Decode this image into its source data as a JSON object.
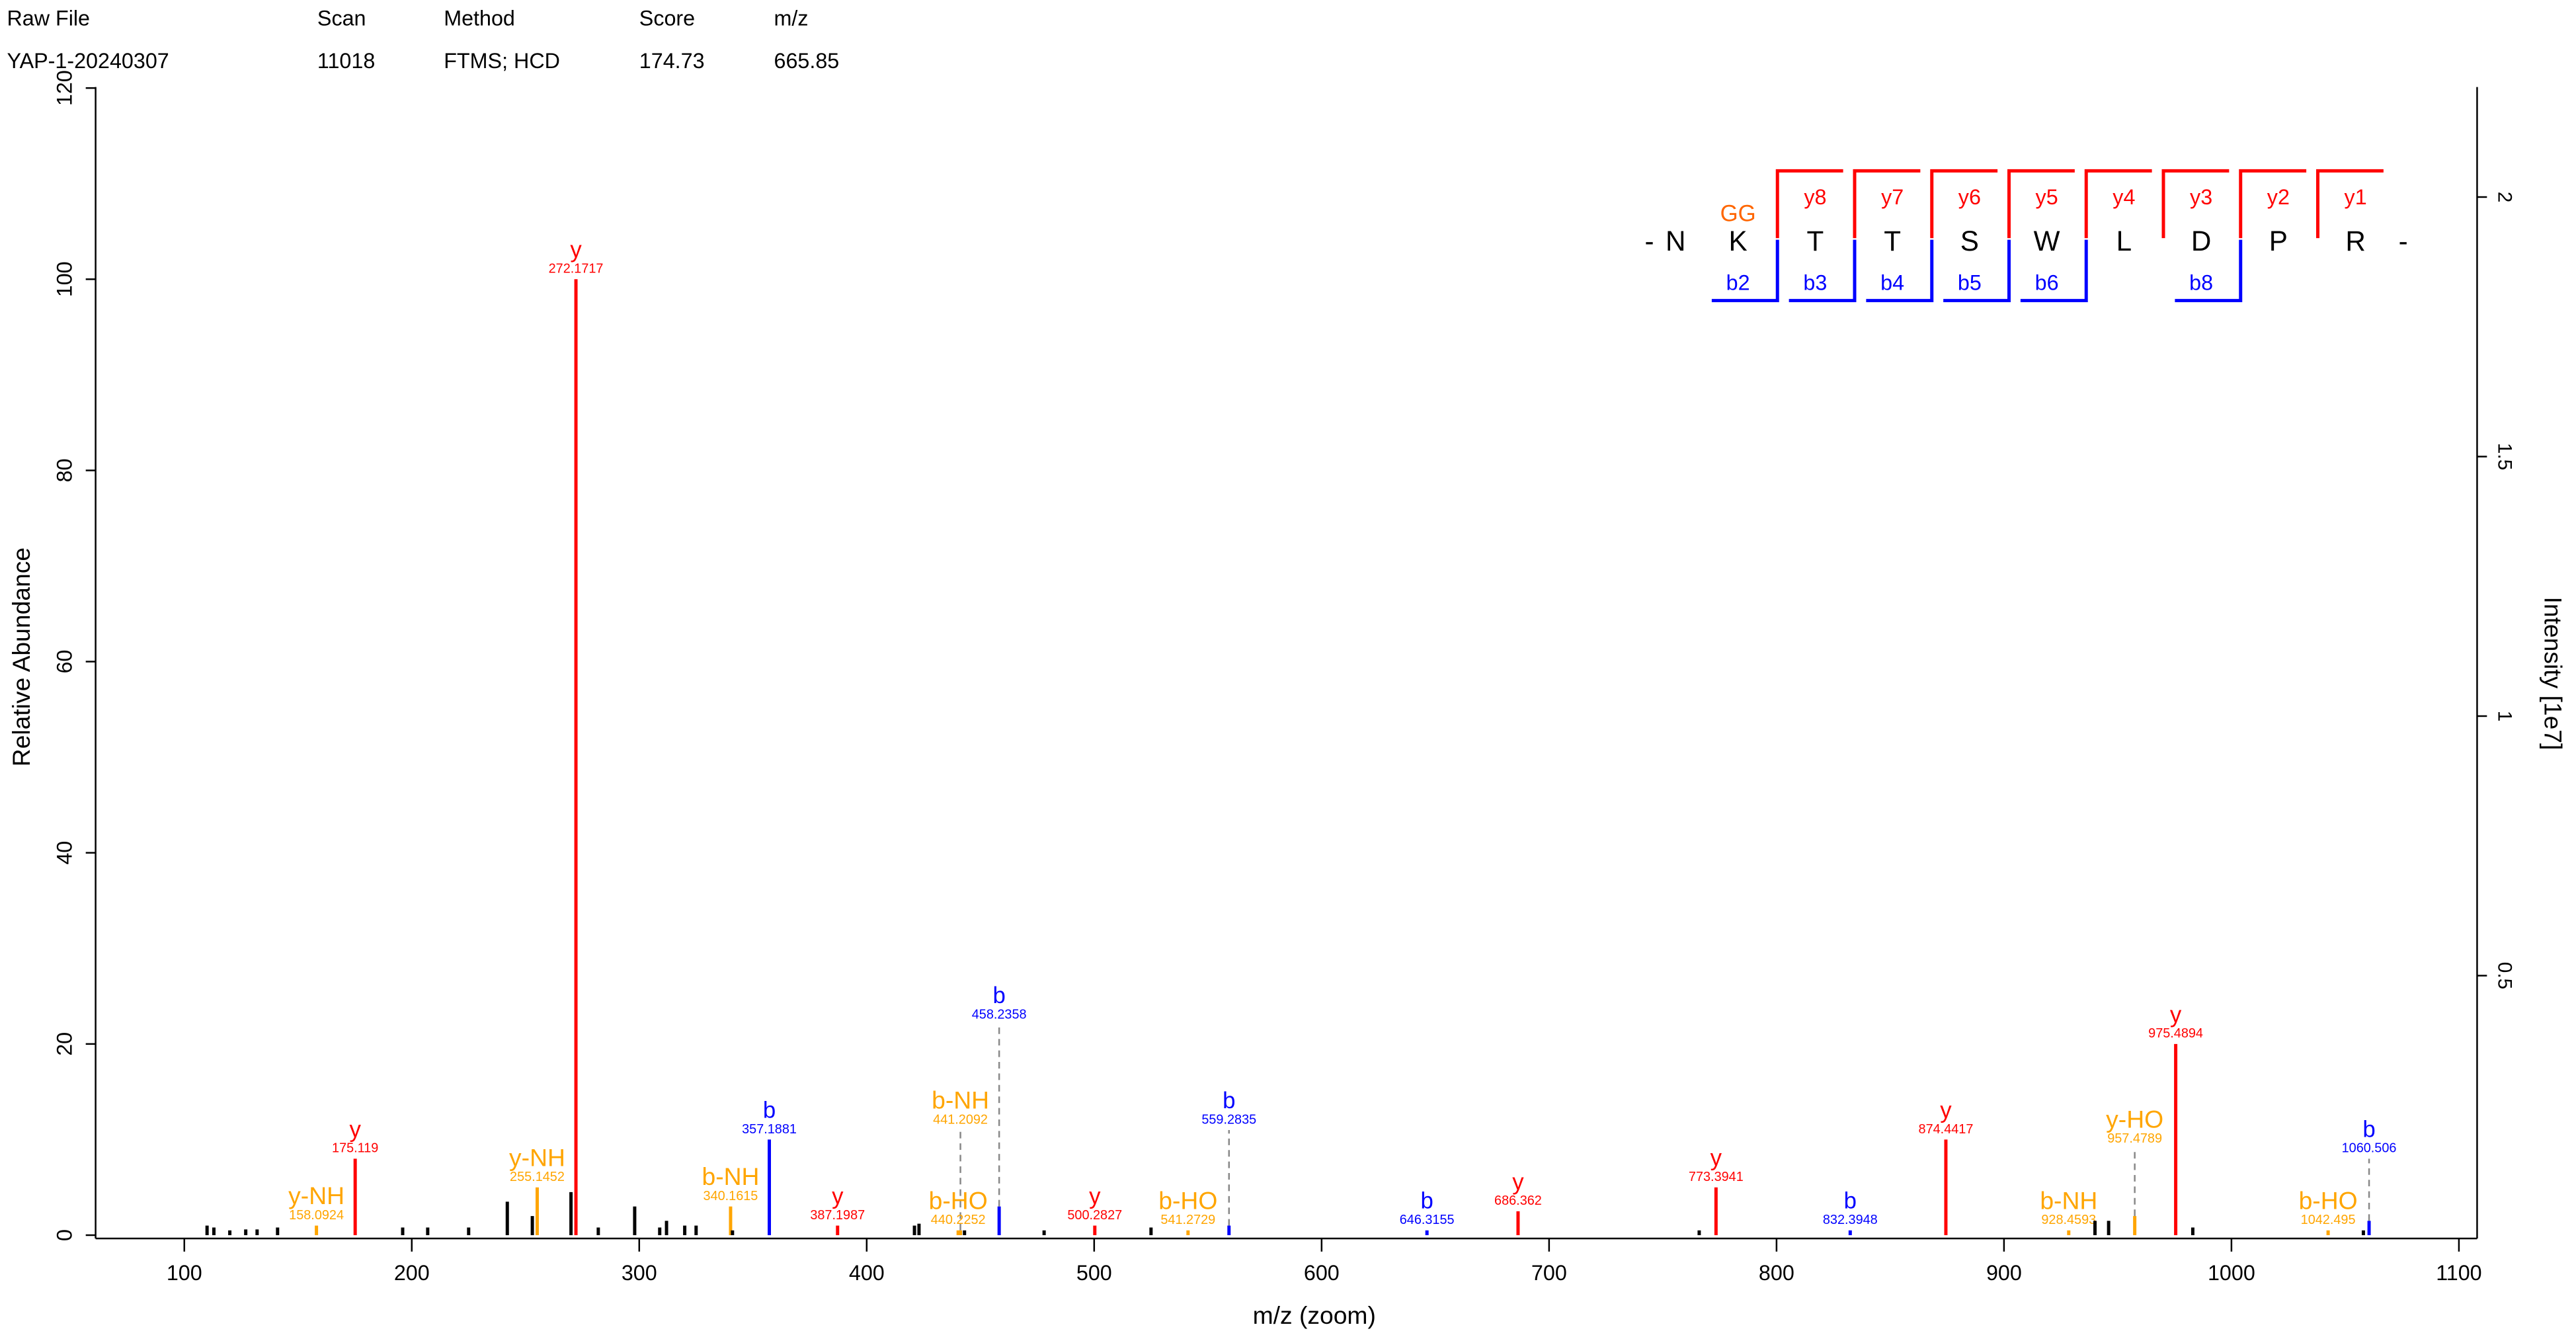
{
  "header": {
    "columns": [
      "Raw File",
      "Scan",
      "Method",
      "Score",
      "m/z"
    ],
    "values": [
      "YAP-1-20240307",
      "11018",
      "FTMS; HCD",
      "174.73",
      "665.85"
    ]
  },
  "chart_data": {
    "type": "spectrum",
    "xlabel": "m/z (zoom)",
    "ylabel": "Relative Abundance",
    "y2label": "Intensity [1e7]",
    "xlim": [
      61,
      1108
    ],
    "xticks": [
      100,
      200,
      300,
      400,
      500,
      600,
      700,
      800,
      900,
      1000,
      1100
    ],
    "ylim": [
      0,
      120
    ],
    "yticks": [
      0,
      20,
      40,
      60,
      80,
      100,
      120
    ],
    "y2lim": [
      0,
      2.21
    ],
    "y2ticks": [
      0.5,
      1,
      1.5,
      2
    ],
    "series": [
      {
        "color": "#ff0000",
        "ions": [
          "y",
          "y",
          "y",
          "y",
          "y",
          "y",
          "y",
          "y"
        ],
        "x": [
          175.119,
          272.1717,
          387.1987,
          500.2827,
          686.362,
          773.3941,
          874.4417,
          975.4894
        ],
        "values": [
          8,
          100,
          1,
          1,
          2.5,
          5,
          10,
          20
        ]
      },
      {
        "color": "#0000ff",
        "ions": [
          "b",
          "b",
          "b",
          "b",
          "b",
          "b"
        ],
        "x": [
          357.1881,
          458.2358,
          559.2835,
          646.3155,
          832.3948,
          1060.506
        ],
        "values": [
          10,
          3,
          1,
          0.5,
          0.5,
          1.5
        ]
      },
      {
        "color": "#ffa500",
        "ions": [
          "y-NH",
          "y-NH",
          "b-NH",
          "b-NH",
          "b-HO",
          "b-HO",
          "b-NH",
          "y-HO",
          "b-HO"
        ],
        "x": [
          158.0924,
          255.1452,
          340.1615,
          441.2092,
          440.2252,
          541.2729,
          928.4593,
          957.4789,
          1042.495
        ],
        "values": [
          1,
          5,
          3,
          0.5,
          0.5,
          0.5,
          0.5,
          2,
          0.5
        ]
      },
      {
        "color": "#000000",
        "x": [
          110,
          113,
          120,
          127,
          132,
          141,
          196,
          207,
          225,
          242,
          253,
          270,
          282,
          298,
          309,
          312,
          320,
          325,
          341,
          421,
          423,
          443,
          478,
          525,
          766,
          940,
          946,
          983,
          1058
        ],
        "values": [
          1,
          0.8,
          0.5,
          0.6,
          0.6,
          0.8,
          0.8,
          0.8,
          0.8,
          3.5,
          2,
          4.5,
          0.8,
          3,
          0.8,
          1.5,
          1,
          1,
          0.5,
          1,
          1.2,
          0.5,
          0.5,
          0.8,
          0.5,
          1.5,
          1.5,
          0.8,
          0.5
        ]
      }
    ]
  },
  "sequence": {
    "prefix": "-",
    "suffix": "-",
    "residues": [
      "N",
      "K",
      "T",
      "T",
      "S",
      "W",
      "L",
      "D",
      "P",
      "R"
    ],
    "modification": "GG",
    "y_ions": [
      null,
      null,
      "y8",
      "y7",
      "y6",
      "y5",
      "y4",
      "y3",
      "y2",
      "y1"
    ],
    "b_ions": [
      null,
      "b2",
      "b3",
      "b4",
      "b5",
      "b6",
      null,
      "b8",
      null,
      null
    ]
  }
}
